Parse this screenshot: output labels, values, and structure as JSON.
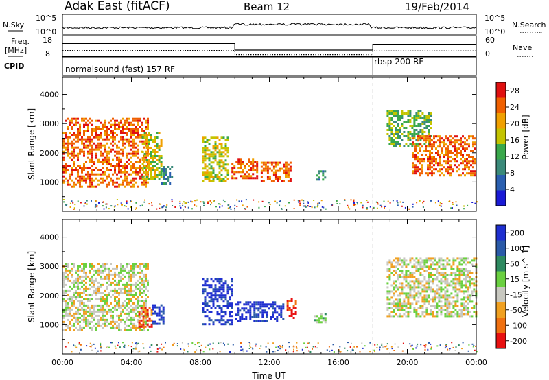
{
  "header": {
    "station": "Adak East (fitACF)",
    "beam": "Beam 12",
    "date": "19/Feb/2014"
  },
  "noise_panel": {
    "left_label": "N.Sky",
    "right_label": "N.Search",
    "left_ticks": [
      "10^5",
      "10^0"
    ],
    "right_ticks": [
      "10^5",
      "10^0"
    ]
  },
  "freq_panel": {
    "left_label_line1": "Freq.",
    "left_label_line2": "[MHz]",
    "right_label": "Nave",
    "left_ticks": [
      "18",
      "8"
    ],
    "right_ticks": [
      "60",
      "0"
    ],
    "freq_level_fraction": [
      0.62,
      0.3,
      0.58
    ],
    "nave_level_fraction": [
      0.28,
      0.08,
      0.26
    ]
  },
  "cpid_panel": {
    "label": "CPID",
    "program_1": "normalsound (fast) 157 RF",
    "program_2": "rbsp 200 RF",
    "program_2_start_hour": 18
  },
  "chart_data": [
    {
      "type": "heatmap",
      "name": "Power",
      "xlabel": "",
      "ylabel": "Slant Range [km]",
      "xlim": [
        0,
        24
      ],
      "ylim": [
        0,
        4600
      ],
      "yticks": [
        "1000",
        "2000",
        "3000",
        "4000"
      ],
      "colorbar_label": "Power [dB]",
      "colorbar_ticks": [
        "4",
        "8",
        "12",
        "16",
        "20",
        "24",
        "28"
      ],
      "colorbar_range": [
        0,
        30
      ],
      "colors": [
        "#1a1ad6",
        "#2a5fb0",
        "#3a8a7a",
        "#39a84b",
        "#c4c400",
        "#f0a000",
        "#f06000",
        "#e01010"
      ],
      "echo_regions": [
        {
          "x0": 0.0,
          "x1": 4.9,
          "y0": 820,
          "y1": 3200,
          "level": 24
        },
        {
          "x0": 4.6,
          "x1": 5.7,
          "y0": 1150,
          "y1": 2700,
          "level": 14
        },
        {
          "x0": 5.7,
          "x1": 6.3,
          "y0": 950,
          "y1": 1550,
          "level": 8
        },
        {
          "x0": 8.1,
          "x1": 9.6,
          "y0": 1050,
          "y1": 2550,
          "level": 14
        },
        {
          "x0": 9.8,
          "x1": 11.3,
          "y0": 1150,
          "y1": 1800,
          "level": 24
        },
        {
          "x0": 11.5,
          "x1": 13.2,
          "y0": 1050,
          "y1": 1700,
          "level": 22
        },
        {
          "x0": 14.7,
          "x1": 15.2,
          "y0": 1050,
          "y1": 1400,
          "level": 8
        },
        {
          "x0": 18.8,
          "x1": 21.4,
          "y0": 2200,
          "y1": 3450,
          "level": 12
        },
        {
          "x0": 20.3,
          "x1": 24.0,
          "y0": 1250,
          "y1": 2600,
          "level": 22
        }
      ]
    },
    {
      "type": "heatmap",
      "name": "Velocity",
      "xlabel": "Time UT",
      "ylabel": "Slant Range [km]",
      "xlim": [
        0,
        24
      ],
      "ylim": [
        0,
        4600
      ],
      "yticks": [
        "1000",
        "2000",
        "3000",
        "4000"
      ],
      "xticks": [
        "00:00",
        "04:00",
        "08:00",
        "12:00",
        "16:00",
        "20:00",
        "00:00"
      ],
      "colorbar_label": "Velocity [m s^-1]",
      "colorbar_ticks": [
        "200",
        "100",
        "50",
        "15",
        "-15",
        "-50",
        "-100",
        "-200"
      ],
      "colors": [
        "#1f2fd0",
        "#2a5aa8",
        "#2e8a60",
        "#6ad040",
        "#c8c8c0",
        "#f0a020",
        "#f07010",
        "#e81010"
      ],
      "echo_regions": [
        {
          "x0": 0.0,
          "x1": 4.9,
          "y0": 800,
          "y1": 3100,
          "level": "-15"
        },
        {
          "x0": 4.4,
          "x1": 5.2,
          "y0": 900,
          "y1": 1600,
          "level": "-100"
        },
        {
          "x0": 5.2,
          "x1": 5.9,
          "y0": 1000,
          "y1": 1700,
          "level": "200"
        },
        {
          "x0": 8.1,
          "x1": 9.8,
          "y0": 1000,
          "y1": 2600,
          "level": "200"
        },
        {
          "x0": 10.0,
          "x1": 12.8,
          "y0": 1100,
          "y1": 1800,
          "level": "200"
        },
        {
          "x0": 13.0,
          "x1": 13.5,
          "y0": 1200,
          "y1": 1900,
          "level": "-200"
        },
        {
          "x0": 14.6,
          "x1": 15.2,
          "y0": 1050,
          "y1": 1400,
          "level": "15"
        },
        {
          "x0": 18.8,
          "x1": 24.0,
          "y0": 1300,
          "y1": 3300,
          "level": "-15"
        }
      ]
    }
  ]
}
